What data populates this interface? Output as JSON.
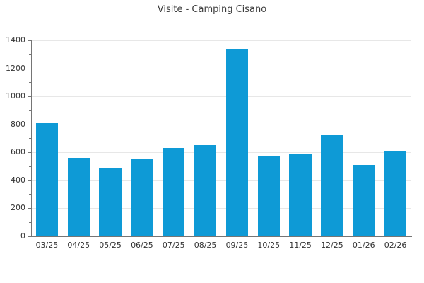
{
  "chart_data": {
    "type": "bar",
    "title": "Visite - Camping Cisano",
    "categories": [
      "03/25",
      "04/25",
      "05/25",
      "06/25",
      "07/25",
      "08/25",
      "09/25",
      "10/25",
      "11/25",
      "12/25",
      "01/26",
      "02/26"
    ],
    "values": [
      810,
      560,
      490,
      550,
      630,
      650,
      1340,
      575,
      585,
      720,
      510,
      605
    ],
    "xlabel": "",
    "ylabel": "",
    "ylim": [
      0,
      1400
    ],
    "ytick_step": 200,
    "yminor_tick_step": 100,
    "ytick_labels": [
      "0",
      "200",
      "400",
      "600",
      "800",
      "1000",
      "1200",
      "1400"
    ],
    "grid": "horizontal-major",
    "legend": "none",
    "bar_color": "#0e9ad6",
    "grid_color": "#e7e7e7",
    "axis_color": "#757575",
    "tick_label_color": "#333333",
    "title_color": "#3c3c3c",
    "background_color": "#ffffff"
  }
}
